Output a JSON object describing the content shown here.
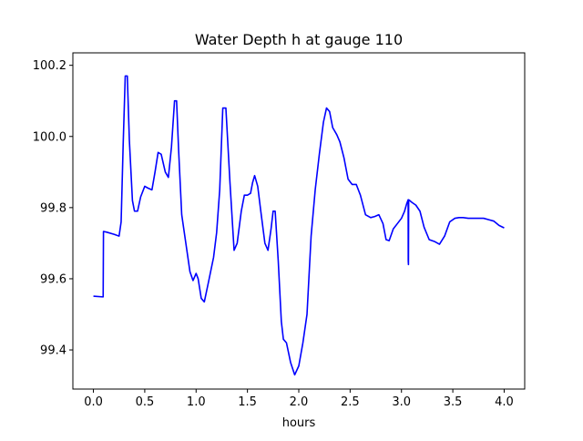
{
  "chart_data": {
    "type": "line",
    "title": "Water Depth h at gauge 110",
    "xlabel": "hours",
    "ylabel": "",
    "xlim": [
      -0.2,
      4.2
    ],
    "ylim": [
      99.29,
      100.235
    ],
    "xticks": [
      0.0,
      0.5,
      1.0,
      1.5,
      2.0,
      2.5,
      3.0,
      3.5,
      4.0
    ],
    "xtick_labels": [
      "0.0",
      "0.5",
      "1.0",
      "1.5",
      "2.0",
      "2.5",
      "3.0",
      "3.5",
      "4.0"
    ],
    "yticks": [
      99.4,
      99.6,
      99.8,
      100.0,
      100.2
    ],
    "ytick_labels": [
      "99.4",
      "99.6",
      "99.8",
      "100.0",
      "100.2"
    ],
    "grid": false,
    "series": [
      {
        "color": "#0000ff",
        "x": [
          0.0,
          0.095,
          0.098,
          0.13,
          0.2,
          0.25,
          0.27,
          0.29,
          0.31,
          0.33,
          0.35,
          0.38,
          0.4,
          0.43,
          0.46,
          0.5,
          0.53,
          0.57,
          0.6,
          0.63,
          0.66,
          0.7,
          0.73,
          0.76,
          0.79,
          0.81,
          0.83,
          0.86,
          0.9,
          0.94,
          0.97,
          1.0,
          1.02,
          1.05,
          1.08,
          1.12,
          1.17,
          1.2,
          1.23,
          1.26,
          1.29,
          1.33,
          1.37,
          1.4,
          1.44,
          1.47,
          1.5,
          1.53,
          1.55,
          1.57,
          1.6,
          1.63,
          1.67,
          1.7,
          1.73,
          1.75,
          1.77,
          1.8,
          1.83,
          1.85,
          1.88,
          1.92,
          1.96,
          2.0,
          2.04,
          2.08,
          2.12,
          2.16,
          2.2,
          2.24,
          2.27,
          2.3,
          2.33,
          2.37,
          2.4,
          2.44,
          2.48,
          2.52,
          2.56,
          2.6,
          2.65,
          2.7,
          2.74,
          2.78,
          2.82,
          2.85,
          2.88,
          2.92,
          2.96,
          3.0,
          3.03,
          3.05,
          3.065,
          3.066,
          3.068,
          3.07,
          3.08,
          3.1,
          3.14,
          3.18,
          3.22,
          3.27,
          3.32,
          3.37,
          3.42,
          3.47,
          3.52,
          3.56,
          3.6,
          3.65,
          3.7,
          3.75,
          3.8,
          3.85,
          3.9,
          3.95,
          4.0
        ],
        "y": [
          99.551,
          99.549,
          99.733,
          99.731,
          99.725,
          99.72,
          99.76,
          99.98,
          100.17,
          100.17,
          99.99,
          99.82,
          99.79,
          99.79,
          99.83,
          99.86,
          99.855,
          99.85,
          99.9,
          99.955,
          99.95,
          99.9,
          99.885,
          99.97,
          100.1,
          100.1,
          99.96,
          99.78,
          99.7,
          99.62,
          99.595,
          99.615,
          99.6,
          99.545,
          99.535,
          99.59,
          99.66,
          99.73,
          99.85,
          100.08,
          100.08,
          99.87,
          99.68,
          99.7,
          99.79,
          99.835,
          99.835,
          99.84,
          99.87,
          99.89,
          99.86,
          99.79,
          99.7,
          99.68,
          99.74,
          99.79,
          99.79,
          99.65,
          99.48,
          99.43,
          99.42,
          99.365,
          99.33,
          99.355,
          99.42,
          99.5,
          99.72,
          99.85,
          99.95,
          100.04,
          100.08,
          100.07,
          100.025,
          100.005,
          99.985,
          99.94,
          99.88,
          99.865,
          99.865,
          99.835,
          99.78,
          99.772,
          99.775,
          99.78,
          99.755,
          99.71,
          99.707,
          99.74,
          99.755,
          99.77,
          99.79,
          99.81,
          99.822,
          99.65,
          99.64,
          99.822,
          99.82,
          99.815,
          99.807,
          99.79,
          99.745,
          99.71,
          99.705,
          99.697,
          99.72,
          99.76,
          99.77,
          99.772,
          99.772,
          99.77,
          99.77,
          99.77,
          99.77,
          99.766,
          99.762,
          99.75,
          99.743
        ]
      }
    ]
  }
}
